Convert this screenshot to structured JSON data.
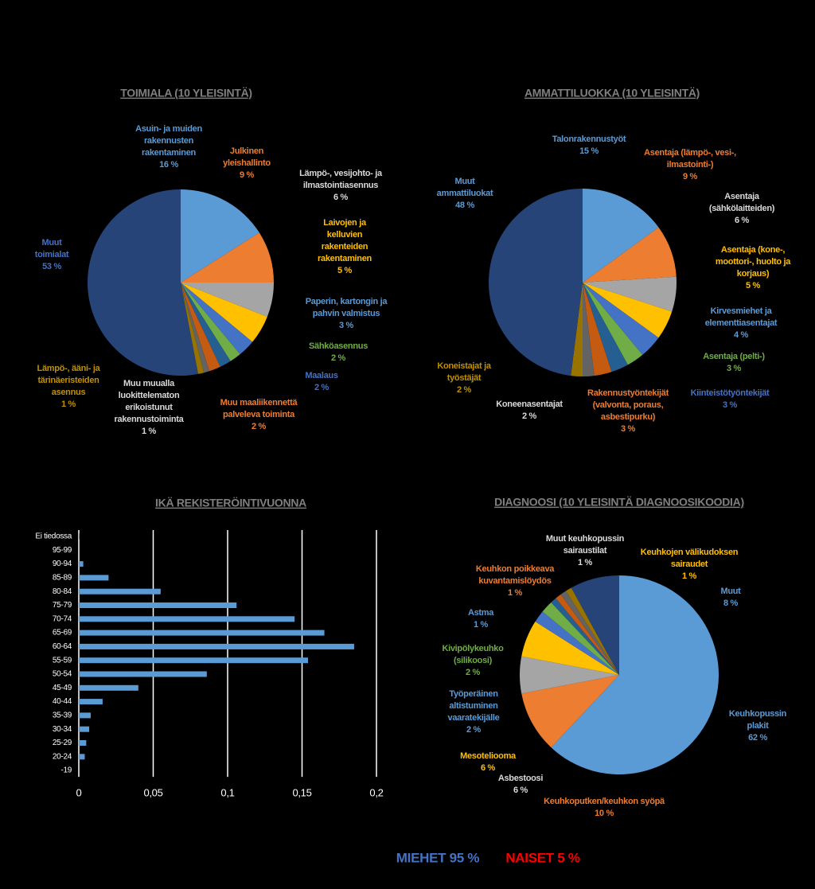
{
  "chart_data": [
    {
      "type": "pie",
      "title": "TOIMIALA (10 YLEISINTÄ)",
      "categories": [
        [
          "Asuin- ja muiden",
          "rakennusten",
          "rakentaminen"
        ],
        [
          "Julkinen",
          "yleishallinto"
        ],
        [
          "Lämpö-, vesijohto- ja",
          "ilmastointiasennus"
        ],
        [
          "Laivojen ja",
          "kelluvien",
          "rakenteiden",
          "rakentaminen"
        ],
        [
          "Paperin, kartongin ja",
          "pahvin valmistus"
        ],
        [
          "Sähköasennus"
        ],
        [
          "Maalaus"
        ],
        [
          "Muu maaliikennettä",
          "palveleva toiminta"
        ],
        [
          "Muu muualla",
          "luokittelematon",
          "erikoistunut",
          "rakennustoiminta"
        ],
        [
          "Lämpö-, ääni- ja",
          "tärinäeristeiden",
          "asennus"
        ],
        [
          "Muut",
          "toimialat"
        ]
      ],
      "values": [
        16,
        9,
        6,
        5,
        3,
        2,
        2,
        2,
        1,
        1,
        53
      ],
      "value_labels": [
        "16 %",
        "9 %",
        "6 %",
        "5 %",
        "3 %",
        "2 %",
        "2 %",
        "2 %",
        "1 %",
        "1 %",
        "53 %"
      ],
      "colors": [
        "#5b9bd5",
        "#ed7d31",
        "#a5a5a5",
        "#ffc000",
        "#4472c4",
        "#70ad47",
        "#255e91",
        "#c55a11",
        "#636363",
        "#997300",
        "#264478"
      ],
      "label_colors": [
        "#5b9bd5",
        "#ed7d31",
        "#d9d9d9",
        "#ffc000",
        "#5b9bd5",
        "#70ad47",
        "#4472c4",
        "#ed7d31",
        "#d9d9d9",
        "#bf9000",
        "#4472c4"
      ]
    },
    {
      "type": "pie",
      "title": "AMMATTILUOKKA (10 YLEISINTÄ)",
      "categories": [
        [
          "Talonrakennustyöt"
        ],
        [
          "Asentaja (lämpö-, vesi-,",
          "ilmastointi-)"
        ],
        [
          "Asentaja",
          "(sähkölaitteiden)"
        ],
        [
          "Asentaja (kone-,",
          "moottori-, huolto ja",
          "korjaus)"
        ],
        [
          "Kirvesmiehet ja",
          "elementtiasentajat"
        ],
        [
          "Asentaja (pelti-)"
        ],
        [
          "Kiinteistötyöntekijät"
        ],
        [
          "Rakennustyöntekijät",
          "(valvonta, poraus,",
          "asbestipurku)"
        ],
        [
          "Koneenasentajat"
        ],
        [
          "Koneistajat ja",
          "työstäjät"
        ],
        [
          "Muut",
          "ammattiluokat"
        ]
      ],
      "values": [
        15,
        9,
        6,
        5,
        4,
        3,
        3,
        3,
        2,
        2,
        48
      ],
      "value_labels": [
        "15 %",
        "9 %",
        "6 %",
        "5 %",
        "4 %",
        "3 %",
        "3 %",
        "3 %",
        "2 %",
        "2 %",
        "48 %"
      ],
      "colors": [
        "#5b9bd5",
        "#ed7d31",
        "#a5a5a5",
        "#ffc000",
        "#4472c4",
        "#70ad47",
        "#255e91",
        "#c55a11",
        "#636363",
        "#997300",
        "#264478"
      ],
      "label_colors": [
        "#5b9bd5",
        "#ed7d31",
        "#d9d9d9",
        "#ffc000",
        "#5b9bd5",
        "#70ad47",
        "#4472c4",
        "#ed7d31",
        "#d9d9d9",
        "#bf9000",
        "#5b9bd5"
      ]
    },
    {
      "type": "hbar",
      "title": "IKÄ REKISTERÖINTIVUONNA",
      "categories": [
        "Ei tiedossa",
        "95-99",
        "90-94",
        "85-89",
        "80-84",
        "75-79",
        "70-74",
        "65-69",
        "60-64",
        "55-59",
        "50-54",
        "45-49",
        "40-44",
        "35-39",
        "30-34",
        "25-29",
        "20-24",
        "-19"
      ],
      "values": [
        0.0005,
        0,
        0.003,
        0.02,
        0.055,
        0.106,
        0.145,
        0.165,
        0.185,
        0.154,
        0.086,
        0.04,
        0.016,
        0.008,
        0.007,
        0.005,
        0.004,
        0
      ],
      "color": "#5b9bd5",
      "xlim": [
        0,
        0.2
      ],
      "xticks": [
        0,
        {
          "value": 0.05,
          "label": "0,05"
        },
        {
          "value": 0.1,
          "label": "0,1"
        },
        {
          "value": 0.15,
          "label": "0,15"
        },
        {
          "value": 0.2,
          "label": "0,2"
        }
      ],
      "grid": true
    },
    {
      "type": "pie",
      "title": "DIAGNOOSI (10 YLEISINTÄ DIAGNOOSIKOODIA)",
      "categories": [
        [
          "Keuhkopussin",
          "plakit"
        ],
        [
          "Keuhkoputken/keuhkon syöpä"
        ],
        [
          "Asbestoosi"
        ],
        [
          "Mesoteliooma"
        ],
        [
          "Työperäinen",
          "altistuminen",
          "vaaratekijälle"
        ],
        [
          "Kivipölykeuhko",
          "(silikoosi)"
        ],
        [
          "Astma"
        ],
        [
          "Keuhkon poikkeava",
          "kuvantamislöydös"
        ],
        [
          "Muut keuhkopussin",
          "sairaustilat"
        ],
        [
          "Keuhkojen välikudoksen",
          "sairaudet"
        ],
        [
          "Muut"
        ]
      ],
      "values": [
        62,
        10,
        6,
        6,
        2,
        2,
        1,
        1,
        1,
        1,
        8
      ],
      "value_labels": [
        "62 %",
        "10 %",
        "6 %",
        "6 %",
        "2 %",
        "2 %",
        "1 %",
        "1 %",
        "1 %",
        "1 %",
        "8 %"
      ],
      "colors": [
        "#5b9bd5",
        "#ed7d31",
        "#a5a5a5",
        "#ffc000",
        "#4472c4",
        "#70ad47",
        "#255e91",
        "#c55a11",
        "#636363",
        "#997300",
        "#264478"
      ],
      "label_colors": [
        "#5b9bd5",
        "#ed7d31",
        "#d9d9d9",
        "#ffc000",
        "#5b9bd5",
        "#70ad47",
        "#5b9bd5",
        "#ed7d31",
        "#d9d9d9",
        "#ffc000",
        "#5b9bd5"
      ]
    }
  ],
  "footer": {
    "men": "MIEHET 95 %",
    "women": "NAISET 5 %"
  }
}
